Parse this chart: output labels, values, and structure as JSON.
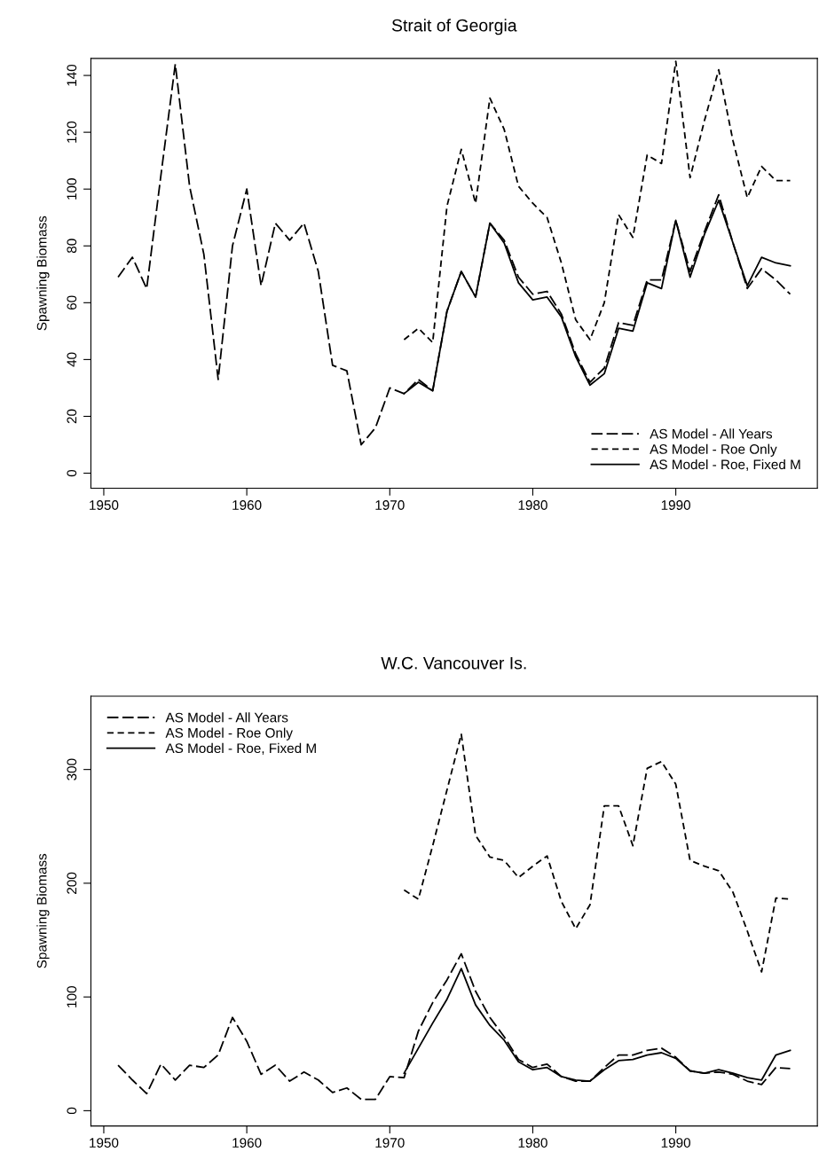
{
  "chart_data": [
    {
      "type": "line",
      "title": "Strait of Georgia",
      "ylabel": "Spawning Biomass",
      "xlim": [
        1949.1,
        1999.9
      ],
      "xticks": [
        1950,
        1960,
        1970,
        1980,
        1990
      ],
      "ylim": [
        -5.3,
        146
      ],
      "yticks": [
        0,
        20,
        40,
        60,
        80,
        100,
        120,
        140
      ],
      "grid": false,
      "legend": "bottom right",
      "marker": "none",
      "series": [
        {
          "name": "AS Model - All Years",
          "color": "#000000",
          "line_style": "dashed",
          "x": [
            1951,
            1952,
            1953,
            1954,
            1955,
            1956,
            1957,
            1958,
            1959,
            1960,
            1961,
            1962,
            1963,
            1964,
            1965,
            1966,
            1967,
            1968,
            1969,
            1970,
            1971,
            1972,
            1973,
            1974,
            1975,
            1976,
            1977,
            1978,
            1979,
            1980,
            1981,
            1982,
            1983,
            1984,
            1985,
            1986,
            1987,
            1988,
            1989,
            1990,
            1991,
            1992,
            1993,
            1994,
            1995,
            1996,
            1997,
            1998
          ],
          "values": [
            69,
            76,
            65,
            105,
            144,
            101,
            77,
            33,
            80,
            100,
            66,
            88,
            82,
            88,
            71,
            38,
            36,
            10,
            16,
            30,
            28,
            33,
            29,
            57,
            71,
            62,
            88,
            82,
            69,
            63,
            64,
            56,
            42,
            32,
            37,
            53,
            52,
            68,
            68,
            89,
            71,
            85,
            98,
            81,
            65,
            72,
            68,
            63
          ]
        },
        {
          "name": "AS Model - Roe Only",
          "color": "#000000",
          "line_style": "dashed",
          "x": [
            1971,
            1972,
            1973,
            1974,
            1975,
            1976,
            1977,
            1978,
            1979,
            1980,
            1981,
            1982,
            1983,
            1984,
            1985,
            1986,
            1987,
            1988,
            1989,
            1990,
            1991,
            1992,
            1993,
            1994,
            1995,
            1996,
            1997,
            1998
          ],
          "values": [
            47,
            51,
            46,
            94,
            114,
            95,
            132,
            121,
            101,
            95,
            90,
            74,
            54,
            47,
            60,
            91,
            83,
            112,
            109,
            145,
            104,
            124,
            142,
            117,
            97,
            108,
            103,
            103
          ]
        },
        {
          "name": "AS Model - Roe, Fixed M",
          "color": "#000000",
          "line_style": "solid",
          "x": [
            1971,
            1972,
            1973,
            1974,
            1975,
            1976,
            1977,
            1978,
            1979,
            1980,
            1981,
            1982,
            1983,
            1984,
            1985,
            1986,
            1987,
            1988,
            1989,
            1990,
            1991,
            1992,
            1993,
            1994,
            1995,
            1996,
            1997,
            1998
          ],
          "values": [
            28,
            32,
            29,
            57,
            71,
            62,
            88,
            81,
            67,
            61,
            62,
            55,
            41,
            31,
            35,
            51,
            50,
            67,
            65,
            89,
            69,
            84,
            96,
            81,
            66,
            76,
            74,
            73
          ]
        }
      ]
    },
    {
      "type": "line",
      "title": "W.C. Vancouver Is.",
      "ylabel": "Spawning Biomass",
      "xlim": [
        1949.1,
        1999.9
      ],
      "xticks": [
        1950,
        1960,
        1970,
        1980,
        1990
      ],
      "ylim": [
        -13.4,
        364.5
      ],
      "yticks": [
        0,
        100,
        200,
        300
      ],
      "grid": false,
      "legend": "top left",
      "marker": "none",
      "series": [
        {
          "name": "AS Model - All Years",
          "color": "#000000",
          "line_style": "dashed",
          "x": [
            1951,
            1952,
            1953,
            1954,
            1955,
            1956,
            1957,
            1958,
            1959,
            1960,
            1961,
            1962,
            1963,
            1964,
            1965,
            1966,
            1967,
            1968,
            1969,
            1970,
            1971,
            1972,
            1973,
            1974,
            1975,
            1976,
            1977,
            1978,
            1979,
            1980,
            1981,
            1982,
            1983,
            1984,
            1985,
            1986,
            1987,
            1988,
            1989,
            1990,
            1991,
            1992,
            1993,
            1994,
            1995,
            1996,
            1997,
            1998
          ],
          "values": [
            40,
            27,
            15,
            41,
            27,
            40,
            38,
            49,
            82,
            61,
            32,
            40,
            26,
            34,
            27,
            16,
            20,
            10,
            10,
            30,
            29,
            70,
            95,
            115,
            138,
            105,
            82,
            65,
            45,
            38,
            41,
            30,
            26,
            26,
            38,
            49,
            49,
            53,
            55,
            47,
            35,
            33,
            34,
            32,
            26,
            23,
            38,
            37
          ]
        },
        {
          "name": "AS Model - Roe Only",
          "color": "#000000",
          "line_style": "dashed",
          "x": [
            1971,
            1972,
            1973,
            1974,
            1975,
            1976,
            1977,
            1978,
            1979,
            1980,
            1981,
            1982,
            1983,
            1984,
            1985,
            1986,
            1987,
            1988,
            1989,
            1990,
            1991,
            1992,
            1993,
            1994,
            1995,
            1996,
            1997,
            1998
          ],
          "values": [
            194,
            186,
            233,
            282,
            331,
            242,
            223,
            220,
            205,
            215,
            224,
            184,
            160,
            181,
            268,
            268,
            233,
            301,
            307,
            287,
            220,
            215,
            211,
            192,
            158,
            122,
            187,
            186
          ]
        },
        {
          "name": "AS Model - Roe, Fixed M",
          "color": "#000000",
          "line_style": "solid",
          "x": [
            1971,
            1972,
            1973,
            1974,
            1975,
            1976,
            1977,
            1978,
            1979,
            1980,
            1981,
            1982,
            1983,
            1984,
            1985,
            1986,
            1987,
            1988,
            1989,
            1990,
            1991,
            1992,
            1993,
            1994,
            1995,
            1996,
            1997,
            1998
          ],
          "values": [
            33,
            55,
            77,
            98,
            125,
            93,
            75,
            62,
            43,
            36,
            38,
            30,
            27,
            26,
            36,
            44,
            45,
            49,
            51,
            46,
            35,
            33,
            36,
            33,
            29,
            27,
            49,
            53
          ]
        }
      ]
    }
  ]
}
